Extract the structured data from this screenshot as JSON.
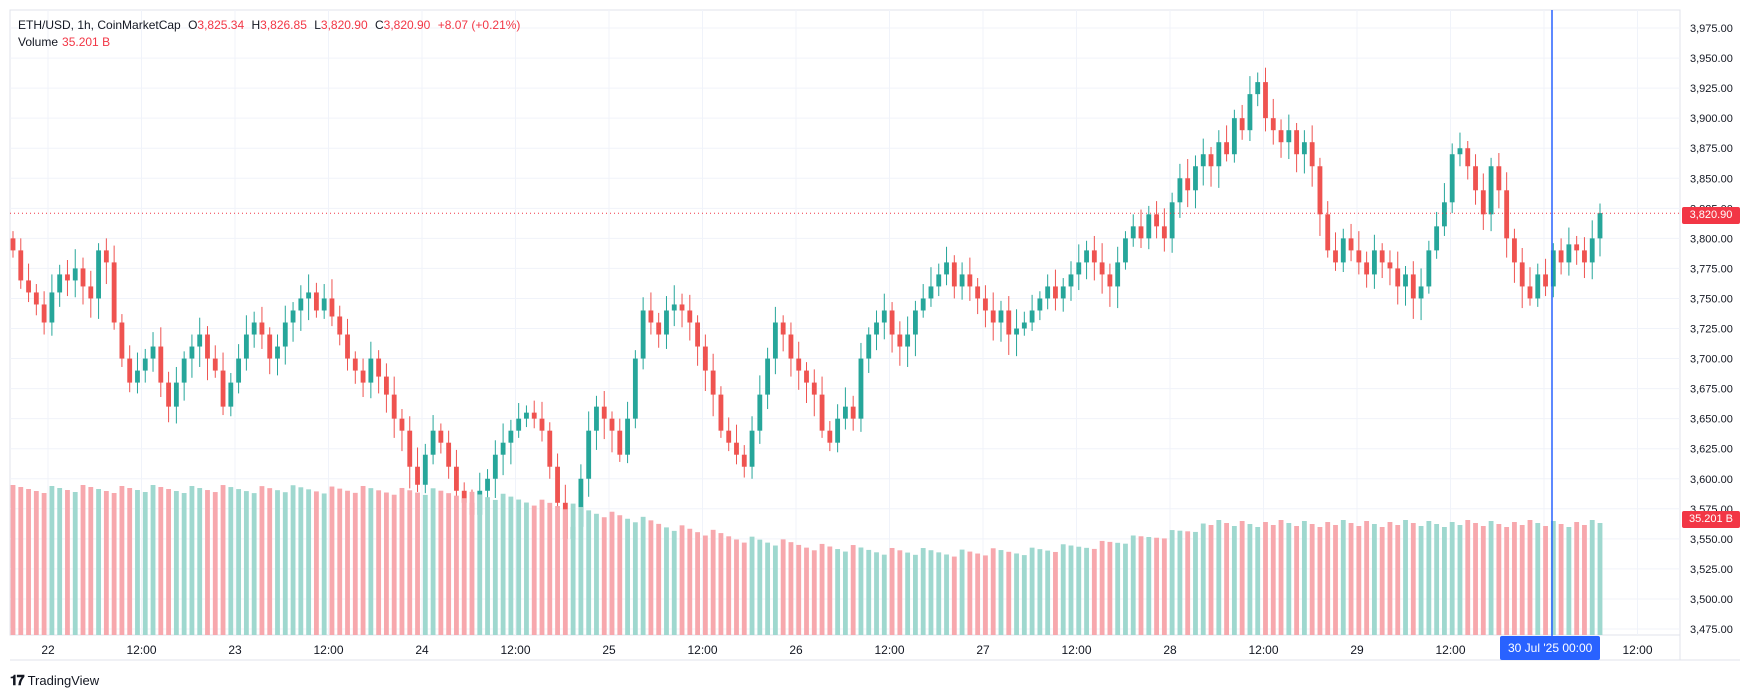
{
  "legend": {
    "symbol": "ETH/USD, 1h, CoinMarketCap",
    "o_label": "O",
    "o_value": "3,825.34",
    "h_label": "H",
    "h_value": "3,826.85",
    "l_label": "L",
    "l_value": "3,820.90",
    "c_label": "C",
    "c_value": "3,820.90",
    "change": "+8.07 (+0.21%)",
    "volume_label": "Volume",
    "volume_value": "35.201 B"
  },
  "price_tag": "3,820.90",
  "volume_tag": "35.201 B",
  "crosshair_label": "30 Jul '25   00:00",
  "brand": "TradingView",
  "colors": {
    "up": "#26a69a",
    "down": "#ef5350",
    "up_vol": "#9fd8cf",
    "down_vol": "#f7a8ad",
    "crosshair": "#2962ff",
    "last_price": "#f23645",
    "grid": "#f0f3fa"
  },
  "chart_data": {
    "type": "candlestick",
    "title": "ETH/USD, 1h, CoinMarketCap",
    "x_ticks": [
      "22",
      "12:00",
      "23",
      "12:00",
      "24",
      "12:00",
      "25",
      "12:00",
      "26",
      "12:00",
      "27",
      "12:00",
      "28",
      "12:00",
      "29",
      "12:00",
      "30 Jul '25",
      "12:00"
    ],
    "y_ticks": [
      "3,475.00",
      "3,500.00",
      "3,525.00",
      "3,550.00",
      "3,575.00",
      "3,600.00",
      "3,625.00",
      "3,650.00",
      "3,675.00",
      "3,700.00",
      "3,725.00",
      "3,750.00",
      "3,775.00",
      "3,800.00",
      "3,825.00",
      "3,850.00",
      "3,875.00",
      "3,900.00",
      "3,925.00",
      "3,950.00",
      "3,975.00"
    ],
    "ylim": [
      3470,
      3990
    ],
    "last_price": 3820.9,
    "ohlc_description": "hourly candles from Jul 21 evening to Jul 30 ~05:00; approximate close path",
    "closes": [
      3790,
      3765,
      3755,
      3745,
      3730,
      3755,
      3770,
      3765,
      3775,
      3760,
      3750,
      3790,
      3780,
      3730,
      3700,
      3680,
      3690,
      3700,
      3710,
      3680,
      3660,
      3680,
      3700,
      3710,
      3720,
      3700,
      3690,
      3660,
      3680,
      3700,
      3720,
      3730,
      3720,
      3700,
      3710,
      3730,
      3740,
      3750,
      3755,
      3740,
      3750,
      3735,
      3720,
      3700,
      3690,
      3680,
      3700,
      3685,
      3670,
      3650,
      3640,
      3610,
      3595,
      3620,
      3640,
      3630,
      3610,
      3590,
      3580,
      3570,
      3590,
      3600,
      3620,
      3630,
      3640,
      3650,
      3655,
      3650,
      3640,
      3610,
      3580,
      3550,
      3560,
      3600,
      3640,
      3660,
      3650,
      3640,
      3620,
      3650,
      3700,
      3740,
      3730,
      3720,
      3740,
      3745,
      3740,
      3730,
      3710,
      3690,
      3670,
      3640,
      3630,
      3620,
      3610,
      3640,
      3670,
      3700,
      3730,
      3720,
      3700,
      3690,
      3680,
      3670,
      3640,
      3630,
      3650,
      3660,
      3650,
      3700,
      3720,
      3730,
      3740,
      3720,
      3710,
      3720,
      3740,
      3750,
      3760,
      3770,
      3780,
      3760,
      3770,
      3760,
      3750,
      3740,
      3730,
      3740,
      3720,
      3725,
      3730,
      3740,
      3750,
      3760,
      3750,
      3760,
      3770,
      3780,
      3790,
      3780,
      3770,
      3760,
      3780,
      3800,
      3810,
      3800,
      3820,
      3810,
      3800,
      3830,
      3850,
      3840,
      3860,
      3870,
      3860,
      3880,
      3870,
      3900,
      3890,
      3920,
      3930,
      3900,
      3890,
      3880,
      3890,
      3870,
      3880,
      3860,
      3820,
      3790,
      3780,
      3800,
      3790,
      3780,
      3770,
      3790,
      3780,
      3775,
      3760,
      3770,
      3750,
      3760,
      3790,
      3810,
      3830,
      3870,
      3875,
      3860,
      3840,
      3820,
      3860,
      3840,
      3800,
      3780,
      3760,
      3750,
      3770,
      3760,
      3790,
      3780,
      3795,
      3790,
      3780,
      3800,
      3821
    ]
  }
}
